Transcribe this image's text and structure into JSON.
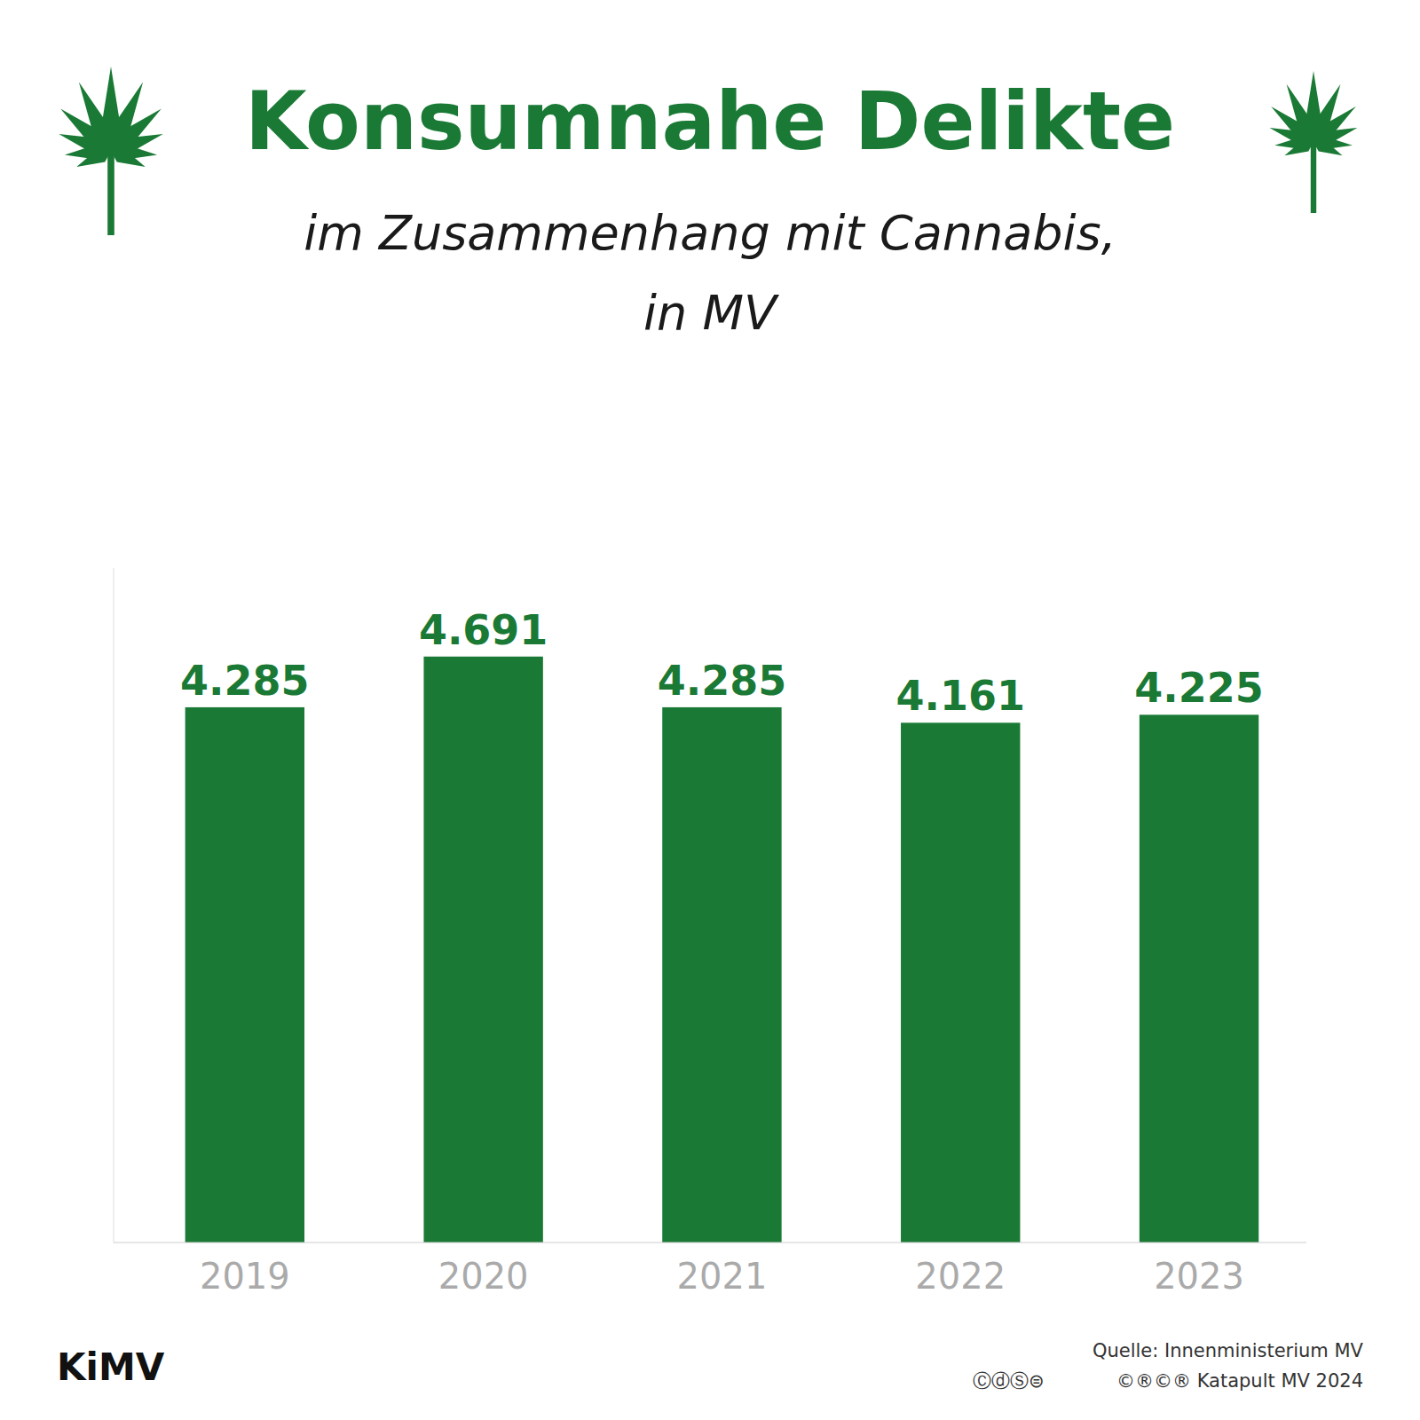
{
  "chart_data": {
    "type": "bar",
    "title": "Konsumnahe Delikte",
    "subtitle": [
      "im Zusammenhang mit Cannabis,",
      "in MV"
    ],
    "categories": [
      "2019",
      "2020",
      "2021",
      "2022",
      "2023"
    ],
    "values": [
      4285,
      4691,
      4285,
      4161,
      4225
    ],
    "value_labels": [
      "4.285",
      "4.691",
      "4.285",
      "4.161",
      "4.225"
    ],
    "data_labels": true,
    "color": "#1a7a35",
    "ylim": [
      0,
      5400
    ],
    "grid": false,
    "tick_labels": "x",
    "annotations": [
      "Quelle: Innenministerium MV",
      "©®©® Katapult MV 2024",
      "ⒸⓓⓈ⊜",
      "KiMV"
    ]
  }
}
